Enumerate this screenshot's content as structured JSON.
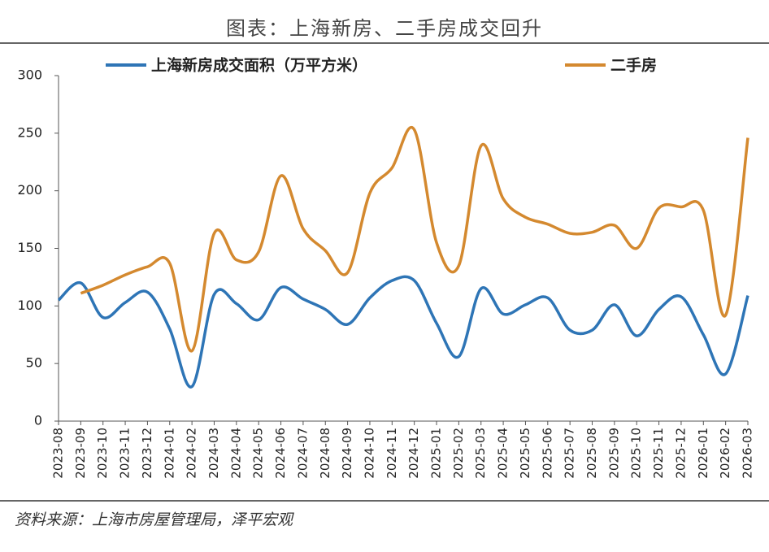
{
  "chart_data": {
    "type": "line",
    "title": "图表：上海新房、二手房成交回升",
    "source": "资料来源：上海市房屋管理局，泽平宏观",
    "categories": [
      "2023-08",
      "2023-09",
      "2023-10",
      "2023-11",
      "2023-12",
      "2024-01",
      "2024-02",
      "2024-03",
      "2024-04",
      "2024-05",
      "2024-06",
      "2024-07",
      "2024-08",
      "2024-09",
      "2024-10",
      "2024-11",
      "2024-12",
      "2025-01",
      "2025-02",
      "2025-03",
      "2025-04",
      "2025-05",
      "2025-06",
      "2025-07",
      "2025-08",
      "2025-09",
      "2025-10",
      "2025-11",
      "2025-12",
      "2026-01",
      "2026-02",
      "2026-03"
    ],
    "series": [
      {
        "name": "上海新房成交面积（万平方米）",
        "color": "#2e75b6",
        "values": [
          105,
          120,
          90,
          103,
          112,
          80,
          30,
          110,
          102,
          88,
          116,
          106,
          97,
          84,
          107,
          122,
          122,
          85,
          56,
          115,
          93,
          101,
          107,
          79,
          79,
          101,
          74,
          97,
          108,
          75,
          41,
          109
        ]
      },
      {
        "name": "二手房",
        "color": "#d4892f",
        "values": [
          null,
          111,
          118,
          127,
          134,
          137,
          61,
          163,
          140,
          147,
          213,
          167,
          148,
          129,
          198,
          220,
          253,
          155,
          135,
          239,
          193,
          177,
          171,
          163,
          164,
          170,
          150,
          185,
          186,
          183,
          92,
          246
        ]
      }
    ],
    "ylim": [
      0,
      300
    ],
    "yticks": [
      0,
      50,
      100,
      150,
      200,
      250,
      300
    ]
  }
}
